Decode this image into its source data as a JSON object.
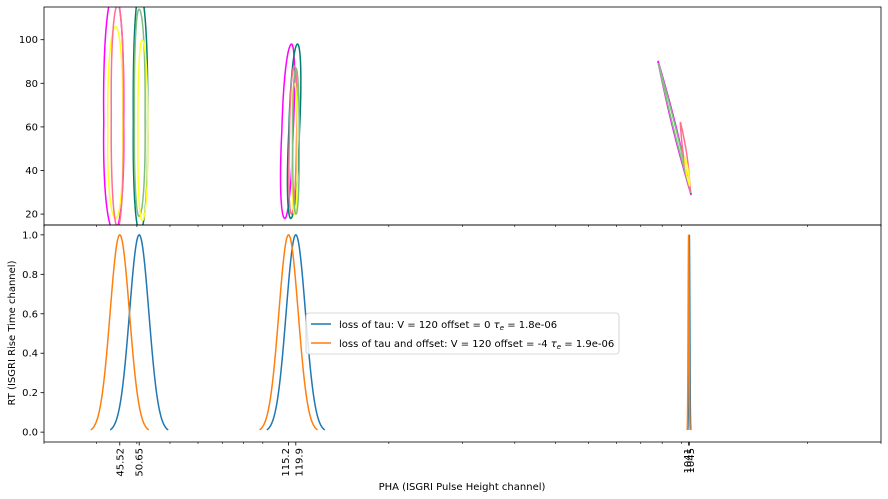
{
  "chart_data": [
    {
      "panel": "top",
      "type": "contour",
      "xscale": "log",
      "ylim": [
        15,
        115
      ],
      "yticks": [
        20,
        40,
        60,
        80,
        100
      ],
      "grid": false,
      "contour_levels": [
        {
          "color": "#ff00ff",
          "kind": "outer"
        },
        {
          "color": "#ff6f8f",
          "kind": "mid"
        },
        {
          "color": "#ffff22",
          "kind": "inner"
        },
        {
          "color": "#007f6f",
          "kind": "outer-shifted"
        },
        {
          "color": "#7fbf7f",
          "kind": "mid-shifted"
        }
      ],
      "clusters": [
        {
          "x_center": 47.5,
          "y_range": [
            15,
            115
          ]
        },
        {
          "x_center": 117.5,
          "y_range": [
            15,
            98
          ]
        },
        {
          "x_center": 1040,
          "y_range": [
            28,
            90
          ]
        }
      ]
    },
    {
      "panel": "bottom",
      "type": "line",
      "xscale": "log",
      "ylim": [
        -0.05,
        1.05
      ],
      "yticks": [
        "0.0",
        "0.2",
        "0.4",
        "0.6",
        "0.8",
        "1.0"
      ],
      "xticks": [
        "45.52",
        "50.65",
        "115.2",
        "119.9",
        "1041",
        "1045"
      ],
      "xticks_numeric": [
        45.52,
        50.65,
        115.2,
        119.9,
        1041,
        1045
      ],
      "xlabel": "PHA (ISGRI Pulse Height channel)",
      "ylabel": "RT (ISGRI Rise Time channel)",
      "legend_position": "center",
      "grid": false,
      "series": [
        {
          "name": "loss of tau: V = 120 offset = 0 τe = 1.8e-06",
          "name_prefix": "loss of tau: V = 120 offset = 0 ",
          "name_suffix": " = 1.8e-06",
          "color": "#1f77b4",
          "peaks": [
            50.65,
            119.9,
            1045
          ],
          "rel_width": 0.055
        },
        {
          "name": "loss of tau and offset: V = 120 offset = -4 τe = 1.9e-06",
          "name_prefix": "loss of tau and offset: V = 120 offset = -4 ",
          "name_suffix": " = 1.9e-06",
          "color": "#ff7f0e",
          "peaks": [
            45.52,
            115.2,
            1041
          ],
          "rel_width": 0.055
        }
      ]
    }
  ]
}
